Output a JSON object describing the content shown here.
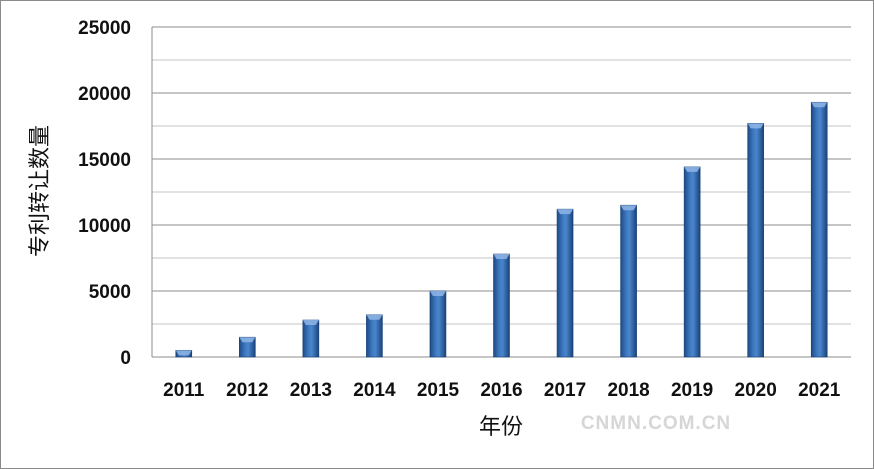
{
  "chart_data": {
    "type": "bar",
    "categories": [
      "2011",
      "2012",
      "2013",
      "2014",
      "2015",
      "2016",
      "2017",
      "2018",
      "2019",
      "2020",
      "2021"
    ],
    "values": [
      500,
      1500,
      2800,
      3200,
      5000,
      7800,
      11200,
      11500,
      14400,
      17700,
      19300
    ],
    "xlabel": "年份",
    "ylabel": "专利转让数量",
    "ylim": [
      0,
      25000
    ],
    "yticks": [
      0,
      5000,
      10000,
      15000,
      20000,
      25000
    ],
    "grid": true,
    "bar_color": "#2f66a8"
  },
  "watermark": "CNMN.COM.CN"
}
